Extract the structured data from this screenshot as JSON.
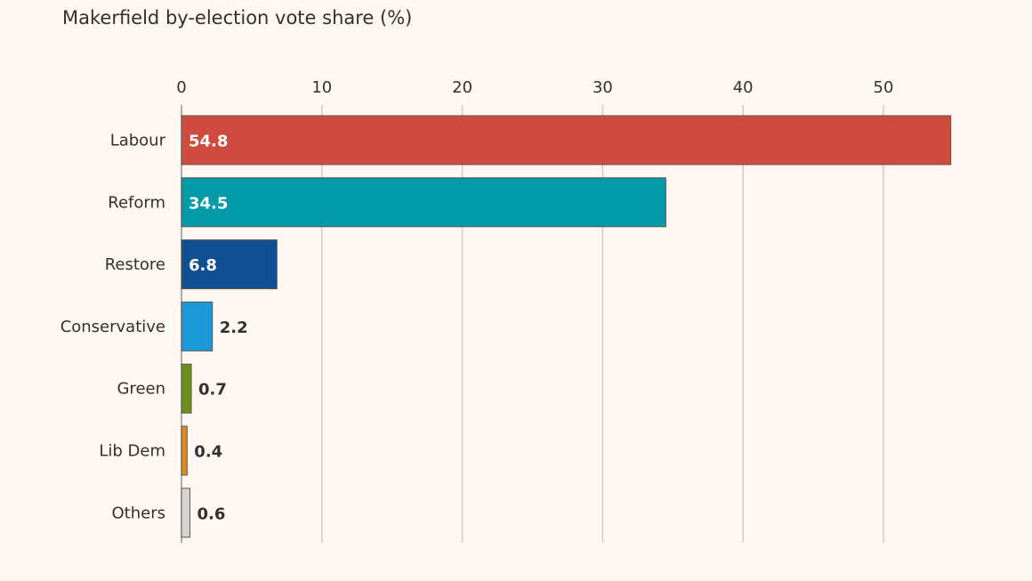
{
  "chart_data": {
    "type": "bar",
    "orientation": "horizontal",
    "title": "Makerfield by-election vote share (%)",
    "xlabel": "",
    "ylabel": "",
    "xlim": [
      0,
      55
    ],
    "x_ticks": [
      0,
      10,
      20,
      30,
      40,
      50
    ],
    "grid": true,
    "legend": "none",
    "categories": [
      "Labour",
      "Reform",
      "Restore",
      "Conservative",
      "Green",
      "Lib Dem",
      "Others"
    ],
    "values": [
      54.8,
      34.5,
      6.8,
      2.2,
      0.7,
      0.4,
      0.6
    ],
    "value_labels": [
      "54.8",
      "34.5",
      "6.8",
      "2.2",
      "0.7",
      "0.4",
      "0.6"
    ],
    "colors": [
      "#cf4b3d",
      "#009aa8",
      "#0f4f93",
      "#1a9ad9",
      "#6b8f1c",
      "#e08a17",
      "#d8d4d2"
    ],
    "label_inside": [
      true,
      true,
      true,
      false,
      false,
      false,
      false
    ]
  }
}
